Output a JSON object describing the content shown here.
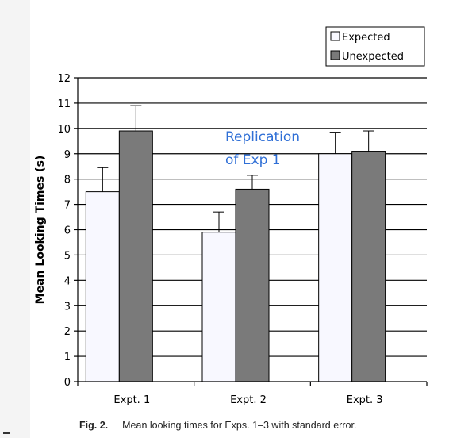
{
  "chart_data": {
    "type": "bar",
    "categories": [
      "Expt. 1",
      "Expt. 2",
      "Expt. 3"
    ],
    "series": [
      {
        "name": "Expected",
        "values": [
          7.5,
          5.9,
          9.0
        ],
        "errors": [
          0.95,
          0.8,
          0.85
        ],
        "color": "#f8f8ff"
      },
      {
        "name": "Unexpected",
        "values": [
          9.9,
          7.6,
          9.1
        ],
        "errors": [
          1.0,
          0.55,
          0.8
        ],
        "color": "#7a7a7a"
      }
    ],
    "ylabel": "Mean Looking Times (s)",
    "xlabel": "",
    "ylim": [
      0,
      12
    ],
    "yticks": [
      "0",
      "1",
      "2",
      "3",
      "4",
      "5",
      "6",
      "7",
      "8",
      "9",
      "10",
      "11",
      "12"
    ],
    "grid": true,
    "legend_position": "top-right",
    "annotation": {
      "lines": [
        "Replication",
        "of Exp 1"
      ],
      "color": "#2f6fd6"
    }
  },
  "caption": {
    "figure_number": "Fig. 2.",
    "text": "Mean looking times for Exps. 1–3 with standard error."
  }
}
